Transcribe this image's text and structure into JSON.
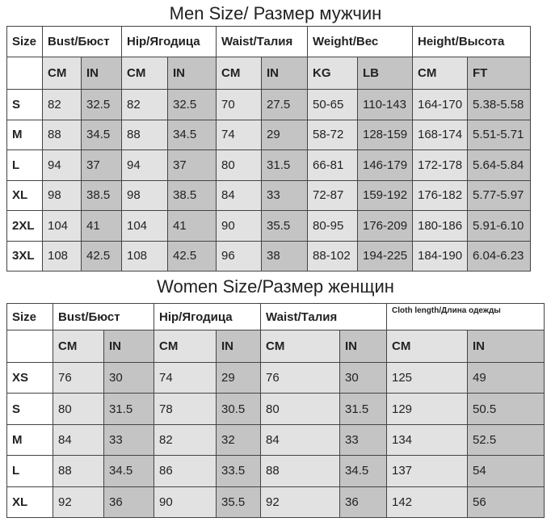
{
  "men": {
    "title": "Men Size/ Размер мужчин",
    "headers": [
      "Size",
      "Bust/Бюст",
      "Hip/Ягодица",
      "Waist/Талия",
      "Weight/Вес",
      "Height/Высота"
    ],
    "units": [
      "CM",
      "IN",
      "CM",
      "IN",
      "CM",
      "IN",
      "KG",
      "LB",
      "CM",
      "FT"
    ],
    "rows": [
      [
        "S",
        "82",
        "32.5",
        "82",
        "32.5",
        "70",
        "27.5",
        "50-65",
        "110-143",
        "164-170",
        "5.38-5.58"
      ],
      [
        "M",
        "88",
        "34.5",
        "88",
        "34.5",
        "74",
        "29",
        "58-72",
        "128-159",
        "168-174",
        "5.51-5.71"
      ],
      [
        "L",
        "94",
        "37",
        "94",
        "37",
        "80",
        "31.5",
        "66-81",
        "146-179",
        "172-178",
        "5.64-5.84"
      ],
      [
        "XL",
        "98",
        "38.5",
        "98",
        "38.5",
        "84",
        "33",
        "72-87",
        "159-192",
        "176-182",
        "5.77-5.97"
      ],
      [
        "2XL",
        "104",
        "41",
        "104",
        "41",
        "90",
        "35.5",
        "80-95",
        "176-209",
        "180-186",
        "5.91-6.10"
      ],
      [
        "3XL",
        "108",
        "42.5",
        "108",
        "42.5",
        "96",
        "38",
        "88-102",
        "194-225",
        "184-190",
        "6.04-6.23"
      ]
    ]
  },
  "women": {
    "title": "Women Size/Размер женщин",
    "headers": [
      "Size",
      "Bust/Бюст",
      "Hip/Ягодица",
      "Waist/Талия",
      "Cloth length/Длина одежды"
    ],
    "units": [
      "CM",
      "IN",
      "CM",
      "IN",
      "CM",
      "IN",
      "CM",
      "IN"
    ],
    "rows": [
      [
        "XS",
        "76",
        "30",
        "74",
        "29",
        "76",
        "30",
        "125",
        "49"
      ],
      [
        "S",
        "80",
        "31.5",
        "78",
        "30.5",
        "80",
        "31.5",
        "129",
        "50.5"
      ],
      [
        "M",
        "84",
        "33",
        "82",
        "32",
        "84",
        "33",
        "134",
        "52.5"
      ],
      [
        "L",
        "88",
        "34.5",
        "86",
        "33.5",
        "88",
        "34.5",
        "137",
        "54"
      ],
      [
        "XL",
        "92",
        "36",
        "90",
        "35.5",
        "92",
        "36",
        "142",
        "56"
      ]
    ]
  }
}
